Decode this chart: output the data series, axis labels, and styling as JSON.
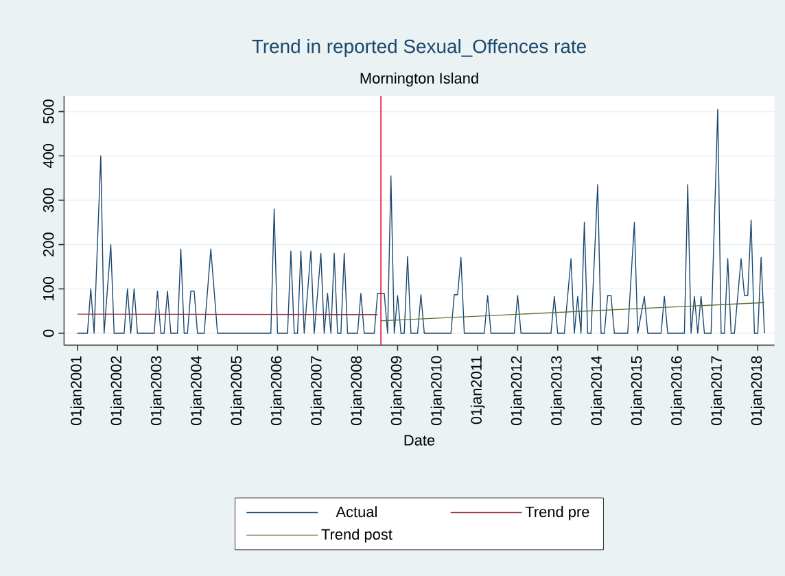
{
  "chart_data": {
    "type": "line",
    "title": "Trend in reported Sexual_Offences rate",
    "subtitle": "Mornington Island",
    "xlabel": "Date",
    "xlim": [
      "2000-09",
      "2018-06"
    ],
    "ylim": [
      -27,
      535
    ],
    "xticks": [
      {
        "value": "2001-01",
        "label": "01jan2001"
      },
      {
        "value": "2002-01",
        "label": "01jan2002"
      },
      {
        "value": "2003-01",
        "label": "01jan2003"
      },
      {
        "value": "2004-01",
        "label": "01jan2004"
      },
      {
        "value": "2005-01",
        "label": "01jan2005"
      },
      {
        "value": "2006-01",
        "label": "01jan2006"
      },
      {
        "value": "2007-01",
        "label": "01jan2007"
      },
      {
        "value": "2008-01",
        "label": "01jan2008"
      },
      {
        "value": "2009-01",
        "label": "01jan2009"
      },
      {
        "value": "2010-01",
        "label": "01jan2010"
      },
      {
        "value": "2011-01",
        "label": "01jan2011"
      },
      {
        "value": "2012-01",
        "label": "01jan2012"
      },
      {
        "value": "2013-01",
        "label": "01jan2013"
      },
      {
        "value": "2014-01",
        "label": "01jan2014"
      },
      {
        "value": "2015-01",
        "label": "01jan2015"
      },
      {
        "value": "2016-01",
        "label": "01jan2016"
      },
      {
        "value": "2017-01",
        "label": "01jan2017"
      },
      {
        "value": "2018-01",
        "label": "01jan2018"
      }
    ],
    "yticks": [
      0,
      100,
      200,
      300,
      400,
      500
    ],
    "grid": "y",
    "legend": "bottom",
    "ref_lines": [
      {
        "axis": "x",
        "value": "2008-08",
        "color": "#e0103c"
      }
    ],
    "series": [
      {
        "name": "Actual",
        "color": "#1a476f",
        "x": [
          "2001-01",
          "2001-04",
          "2001-05",
          "2001-06",
          "2001-08",
          "2001-09",
          "2001-11",
          "2001-12",
          "2002-03",
          "2002-04",
          "2002-05",
          "2002-06",
          "2002-07",
          "2002-12",
          "2003-01",
          "2003-02",
          "2003-03",
          "2003-04",
          "2003-05",
          "2003-07",
          "2003-08",
          "2003-09",
          "2003-10",
          "2003-11",
          "2003-12",
          "2004-01",
          "2004-03",
          "2004-05",
          "2004-07",
          "2005-11",
          "2005-12",
          "2006-01",
          "2006-04",
          "2006-05",
          "2006-06",
          "2006-07",
          "2006-08",
          "2006-09",
          "2006-11",
          "2006-12",
          "2007-02",
          "2007-03",
          "2007-04",
          "2007-05",
          "2007-06",
          "2007-07",
          "2007-08",
          "2007-09",
          "2007-10",
          "2008-01",
          "2008-02",
          "2008-03",
          "2008-06",
          "2008-07",
          "2008-09",
          "2008-10",
          "2008-11",
          "2008-12",
          "2009-01",
          "2009-02",
          "2009-03",
          "2009-04",
          "2009-05",
          "2009-07",
          "2009-08",
          "2009-09",
          "2010-05",
          "2010-06",
          "2010-07",
          "2010-08",
          "2010-09",
          "2011-03",
          "2011-04",
          "2011-05",
          "2011-12",
          "2012-01",
          "2012-02",
          "2012-11",
          "2012-12",
          "2013-01",
          "2013-03",
          "2013-05",
          "2013-06",
          "2013-07",
          "2013-08",
          "2013-09",
          "2013-10",
          "2013-11",
          "2014-01",
          "2014-02",
          "2014-03",
          "2014-04",
          "2014-05",
          "2014-06",
          "2014-10",
          "2014-12",
          "2015-01",
          "2015-03",
          "2015-04",
          "2015-08",
          "2015-09",
          "2015-10",
          "2016-03",
          "2016-04",
          "2016-05",
          "2016-06",
          "2016-07",
          "2016-08",
          "2016-09",
          "2016-11",
          "2017-01",
          "2017-02",
          "2017-03",
          "2017-04",
          "2017-05",
          "2017-06",
          "2017-08",
          "2017-09",
          "2017-10",
          "2017-11",
          "2017-12",
          "2018-01",
          "2018-02",
          "2018-03"
        ],
        "values": [
          0,
          0,
          100,
          0,
          400,
          0,
          200,
          0,
          0,
          100,
          0,
          100,
          0,
          0,
          95,
          0,
          0,
          95,
          0,
          0,
          190,
          0,
          0,
          95,
          95,
          0,
          0,
          190,
          0,
          0,
          280,
          0,
          0,
          185,
          0,
          0,
          185,
          0,
          185,
          0,
          180,
          0,
          90,
          0,
          180,
          0,
          0,
          180,
          0,
          0,
          90,
          0,
          0,
          90,
          90,
          0,
          355,
          0,
          85,
          0,
          0,
          173,
          0,
          0,
          87,
          0,
          0,
          87,
          87,
          171,
          0,
          0,
          85,
          0,
          0,
          85,
          0,
          0,
          83,
          0,
          0,
          168,
          0,
          83,
          0,
          250,
          0,
          0,
          335,
          0,
          0,
          85,
          85,
          0,
          0,
          250,
          0,
          83,
          0,
          0,
          83,
          0,
          0,
          335,
          0,
          83,
          0,
          83,
          0,
          0,
          505,
          0,
          0,
          168,
          0,
          0,
          168,
          85,
          85,
          255,
          0,
          0,
          171,
          0
        ]
      },
      {
        "name": "Trend pre",
        "color": "#90353b",
        "x": [
          "2001-01",
          "2008-07"
        ],
        "values": [
          43,
          42
        ]
      },
      {
        "name": "Trend post",
        "color": "#55752f",
        "x": [
          "2008-08",
          "2018-03"
        ],
        "values": [
          28,
          69
        ]
      }
    ]
  }
}
